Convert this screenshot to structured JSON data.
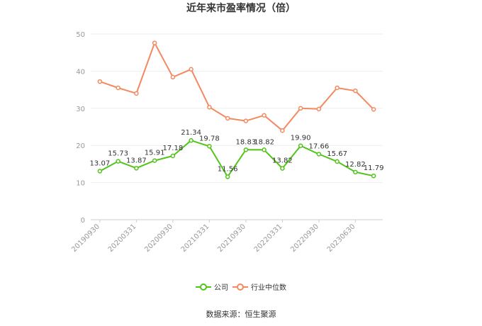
{
  "chart_data": {
    "type": "line",
    "title": "近年来市盈率情况（倍）",
    "xlabel": "",
    "ylabel": "",
    "ylim": [
      0,
      50
    ],
    "yticks": [
      "0",
      "10",
      "20",
      "30",
      "40",
      "50"
    ],
    "x_tick_labels": [
      "20190930",
      "20200331",
      "20200930",
      "20210331",
      "20210930",
      "20220331",
      "20220930",
      "20230630"
    ],
    "x_tick_indices": [
      0,
      2,
      4,
      6,
      8,
      10,
      12,
      14
    ],
    "x_count": 16,
    "grid": true,
    "legend_position": "bottom",
    "series": [
      {
        "name": "公司",
        "color": "#52c41a",
        "show_labels": true,
        "values": [
          13.07,
          15.73,
          13.87,
          15.91,
          17.18,
          21.34,
          19.78,
          11.56,
          18.83,
          18.82,
          13.82,
          19.9,
          17.66,
          15.67,
          12.82,
          11.79
        ],
        "labels": [
          "13.07",
          "15.73",
          "13.87",
          "15.91",
          "17.18",
          "21.34",
          "19.78",
          "11.56",
          "18.83",
          "18.82",
          "13.82",
          "19.90",
          "17.66",
          "15.67",
          "12.82",
          "11.79"
        ]
      },
      {
        "name": "行业中位数",
        "color": "#f4895f",
        "show_labels": false,
        "values": [
          37.2,
          35.5,
          34.0,
          47.6,
          38.4,
          40.5,
          30.3,
          27.3,
          26.6,
          28.1,
          24.0,
          30.0,
          29.8,
          35.5,
          34.7,
          29.7
        ]
      }
    ]
  },
  "source": "数据来源：恒生聚源"
}
